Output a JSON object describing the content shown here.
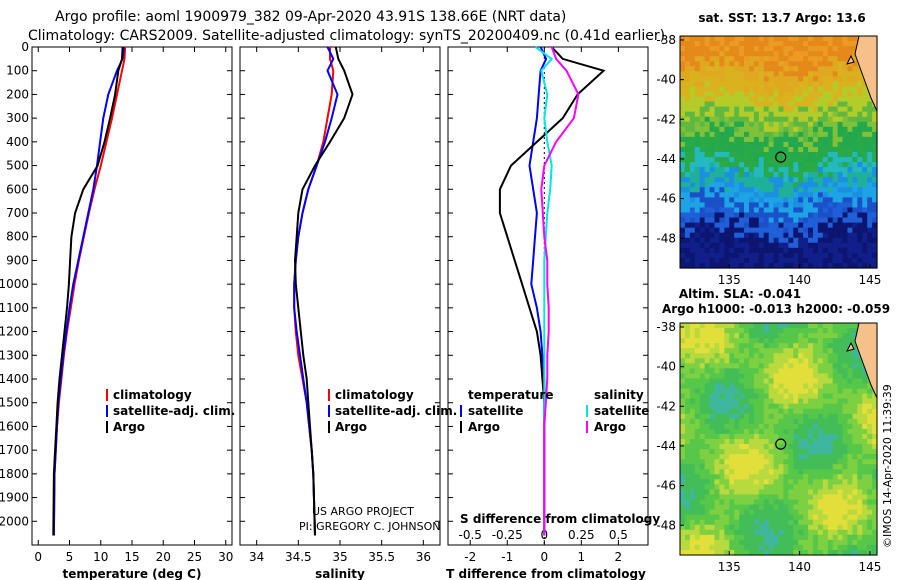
{
  "title_line1": "Argo profile: aoml 1900979_382 09-Apr-2020 43.91S 138.66E (NRT data)",
  "title_line2": "Climatology: CARS2009. Satellite-adjusted climatology: synTS_20200409.nc (0.41d earlier)",
  "credit_line1": "US ARGO PROJECT",
  "credit_line2": "PI: GREGORY C. JOHNSON",
  "imos_stamp": "©IMOS 14-Apr-2020 11:39:39",
  "colors": {
    "climatology": "#ff0000",
    "satellite": "#0000ff",
    "argo": "#000000",
    "sat_salinity": "#00e5e5",
    "argo_salinity": "#ff00ff"
  },
  "chart_data": [
    {
      "type": "line",
      "xlabel": "temperature (deg C)",
      "ylabel": "",
      "xlim": [
        -1,
        31
      ],
      "ylim": [
        2100,
        0
      ],
      "xticks": [
        "0",
        "5",
        "10",
        "15",
        "20",
        "25",
        "30"
      ],
      "yticks": [
        "0",
        "100",
        "200",
        "300",
        "400",
        "500",
        "600",
        "700",
        "800",
        "900",
        "1000",
        "1100",
        "1200",
        "1300",
        "1400",
        "1500",
        "1600",
        "1700",
        "1800",
        "1900",
        "2000"
      ],
      "legend": [
        "climatology",
        "satellite-adj. clim.",
        "Argo"
      ],
      "series": [
        {
          "name": "climatology",
          "color": "#ff0000",
          "x": [
            13.9,
            13.8,
            13.4,
            12.6,
            11.8,
            10.9,
            10.0,
            9.0,
            8.1,
            7.3,
            6.5,
            5.8,
            5.2,
            4.6,
            4.1,
            3.7,
            3.3,
            3.0,
            2.8,
            2.6,
            2.5
          ],
          "y": [
            0,
            50,
            100,
            200,
            300,
            400,
            500,
            600,
            700,
            800,
            900,
            1000,
            1100,
            1200,
            1300,
            1400,
            1500,
            1600,
            1700,
            1800,
            2060
          ]
        },
        {
          "name": "satellite-adj. clim.",
          "color": "#0000ff",
          "x": [
            13.7,
            13.5,
            12.6,
            11.2,
            10.4,
            9.9,
            9.4,
            8.8,
            8.0,
            7.2,
            6.4,
            5.6,
            5.0,
            4.5,
            4.0,
            3.6,
            3.2,
            3.0,
            2.8,
            2.6,
            2.5
          ],
          "y": [
            0,
            50,
            100,
            200,
            300,
            400,
            500,
            600,
            700,
            800,
            900,
            1000,
            1100,
            1200,
            1300,
            1400,
            1500,
            1600,
            1700,
            1800,
            2060
          ]
        },
        {
          "name": "Argo",
          "color": "#000000",
          "x": [
            13.5,
            13.4,
            12.8,
            12.3,
            11.5,
            10.6,
            9.5,
            7.2,
            5.9,
            5.3,
            5.1,
            4.9,
            4.6,
            4.2,
            3.8,
            3.4,
            3.1,
            2.9,
            2.7,
            2.5,
            2.4
          ],
          "y": [
            0,
            50,
            100,
            200,
            300,
            400,
            500,
            600,
            700,
            800,
            900,
            1000,
            1100,
            1200,
            1300,
            1400,
            1500,
            1600,
            1700,
            1800,
            2060
          ]
        }
      ]
    },
    {
      "type": "line",
      "xlabel": "salinity",
      "ylabel": "",
      "xlim": [
        33.8,
        36.2
      ],
      "ylim": [
        2100,
        0
      ],
      "xticks": [
        "34",
        "34.5",
        "35",
        "35.5",
        "36"
      ],
      "legend": [
        "climatology",
        "satellite-adj. clim.",
        "Argo"
      ],
      "series": [
        {
          "name": "climatology",
          "color": "#ff0000",
          "x": [
            34.88,
            34.88,
            34.92,
            34.9,
            34.85,
            34.8,
            34.72,
            34.62,
            34.55,
            34.5,
            34.47,
            34.45,
            34.45,
            34.47,
            34.5,
            34.55,
            34.6,
            34.63,
            34.66,
            34.68,
            34.7
          ],
          "y": [
            0,
            50,
            100,
            200,
            300,
            400,
            500,
            600,
            700,
            800,
            900,
            1000,
            1100,
            1200,
            1300,
            1400,
            1500,
            1600,
            1700,
            1800,
            2060
          ]
        },
        {
          "name": "satellite-adj. clim.",
          "color": "#0000ff",
          "x": [
            34.85,
            34.92,
            34.85,
            34.97,
            34.9,
            34.82,
            34.72,
            34.62,
            34.55,
            34.5,
            34.47,
            34.45,
            34.45,
            34.48,
            34.52,
            34.56,
            34.6,
            34.63,
            34.66,
            34.68,
            34.7
          ],
          "y": [
            0,
            50,
            100,
            200,
            300,
            400,
            500,
            600,
            700,
            800,
            900,
            1000,
            1100,
            1200,
            1300,
            1400,
            1500,
            1600,
            1700,
            1800,
            2060
          ]
        },
        {
          "name": "Argo",
          "color": "#000000",
          "x": [
            34.95,
            34.98,
            35.05,
            35.15,
            35.05,
            34.88,
            34.7,
            34.55,
            34.5,
            34.48,
            34.46,
            34.47,
            34.5,
            34.53,
            34.56,
            34.6,
            34.62,
            34.64,
            34.66,
            34.68,
            34.7
          ],
          "y": [
            0,
            50,
            100,
            200,
            300,
            400,
            500,
            600,
            700,
            800,
            900,
            1000,
            1100,
            1200,
            1300,
            1400,
            1500,
            1600,
            1700,
            1800,
            2060
          ]
        }
      ]
    },
    {
      "type": "line",
      "xlabel": "T difference from climatology",
      "xlabel2": "S difference from climatology",
      "xlim": [
        -2.6,
        2.8
      ],
      "ylim": [
        2100,
        0
      ],
      "xticks": [
        "-2",
        "-1",
        "0",
        "1",
        "2"
      ],
      "xticks2": [
        "-0.5",
        "-0.25",
        "0",
        "0.25",
        "0.5"
      ],
      "legend_header_left": "temperature",
      "legend_header_right": "salinity",
      "legend_left": [
        "satellite",
        "Argo"
      ],
      "legend_right": [
        "satellite",
        "Argo"
      ],
      "series": [
        {
          "name": "satellite",
          "color": "#0000ff",
          "x": [
            -0.1,
            0.05,
            -0.1,
            -0.15,
            -0.2,
            -0.3,
            -0.4,
            -0.3,
            -0.2,
            -0.25,
            -0.3,
            -0.35,
            -0.2,
            -0.1,
            -0.05,
            0.0,
            0.0,
            0.0,
            0.0,
            0.0,
            0.0
          ],
          "y": [
            0,
            50,
            100,
            200,
            300,
            400,
            500,
            600,
            700,
            800,
            900,
            1000,
            1100,
            1200,
            1300,
            1400,
            1500,
            1600,
            1700,
            1800,
            2060
          ]
        },
        {
          "name": "Argo",
          "color": "#000000",
          "x": [
            0.2,
            0.5,
            1.6,
            0.9,
            0.5,
            -0.2,
            -0.9,
            -1.2,
            -1.2,
            -1.0,
            -0.8,
            -0.6,
            -0.4,
            -0.2,
            -0.1,
            -0.05,
            0.0,
            0.0,
            0.0,
            0.0,
            0.0
          ],
          "y": [
            0,
            50,
            100,
            200,
            300,
            400,
            500,
            600,
            700,
            800,
            900,
            1000,
            1100,
            1200,
            1300,
            1400,
            1500,
            1600,
            1700,
            1800,
            2060
          ]
        },
        {
          "name": "satellite",
          "color": "#00e5e5",
          "x": [
            -0.06,
            0.05,
            -0.02,
            0.02,
            0.0,
            0.02,
            0.05,
            0.04,
            0.02,
            0.01,
            0.0,
            0.0,
            0.0,
            0.0,
            0.0,
            0.0,
            0.0,
            0.0,
            0.0,
            0.0,
            0.0
          ],
          "y": [
            0,
            50,
            100,
            200,
            300,
            400,
            500,
            600,
            700,
            800,
            900,
            1000,
            1100,
            1200,
            1300,
            1400,
            1500,
            1600,
            1700,
            1800,
            2060
          ]
        },
        {
          "name": "Argo",
          "color": "#ff00ff",
          "x": [
            0.05,
            0.08,
            0.15,
            0.23,
            0.2,
            0.08,
            0.0,
            -0.02,
            -0.01,
            0.0,
            0.02,
            0.02,
            0.03,
            0.03,
            0.02,
            0.02,
            0.01,
            0.0,
            0.0,
            0.0,
            0.0
          ],
          "y": [
            0,
            50,
            100,
            200,
            300,
            400,
            500,
            600,
            700,
            800,
            900,
            1000,
            1100,
            1200,
            1300,
            1400,
            1500,
            1600,
            1700,
            1800,
            2060
          ]
        }
      ]
    },
    {
      "type": "heatmap",
      "title": "sat. SST: 13.7 Argo: 13.6",
      "xticks": [
        "135",
        "140",
        "145"
      ],
      "yticks": [
        "-38",
        "-40",
        "-42",
        "-44",
        "-46",
        "-48"
      ],
      "xlim": [
        131.5,
        145.5
      ],
      "ylim": [
        -49.5,
        -37.8
      ],
      "marker": {
        "lon": 138.66,
        "lat": -43.91
      }
    },
    {
      "type": "heatmap",
      "title_line1": "Altim. SLA: -0.041",
      "title_line2": "Argo h1000: -0.013 h2000: -0.059",
      "xticks": [
        "135",
        "140",
        "145"
      ],
      "yticks": [
        "-38",
        "-40",
        "-42",
        "-44",
        "-46",
        "-48"
      ],
      "xlim": [
        131.5,
        145.5
      ],
      "ylim": [
        -49.5,
        -37.8
      ],
      "marker": {
        "lon": 138.66,
        "lat": -43.91
      }
    }
  ]
}
